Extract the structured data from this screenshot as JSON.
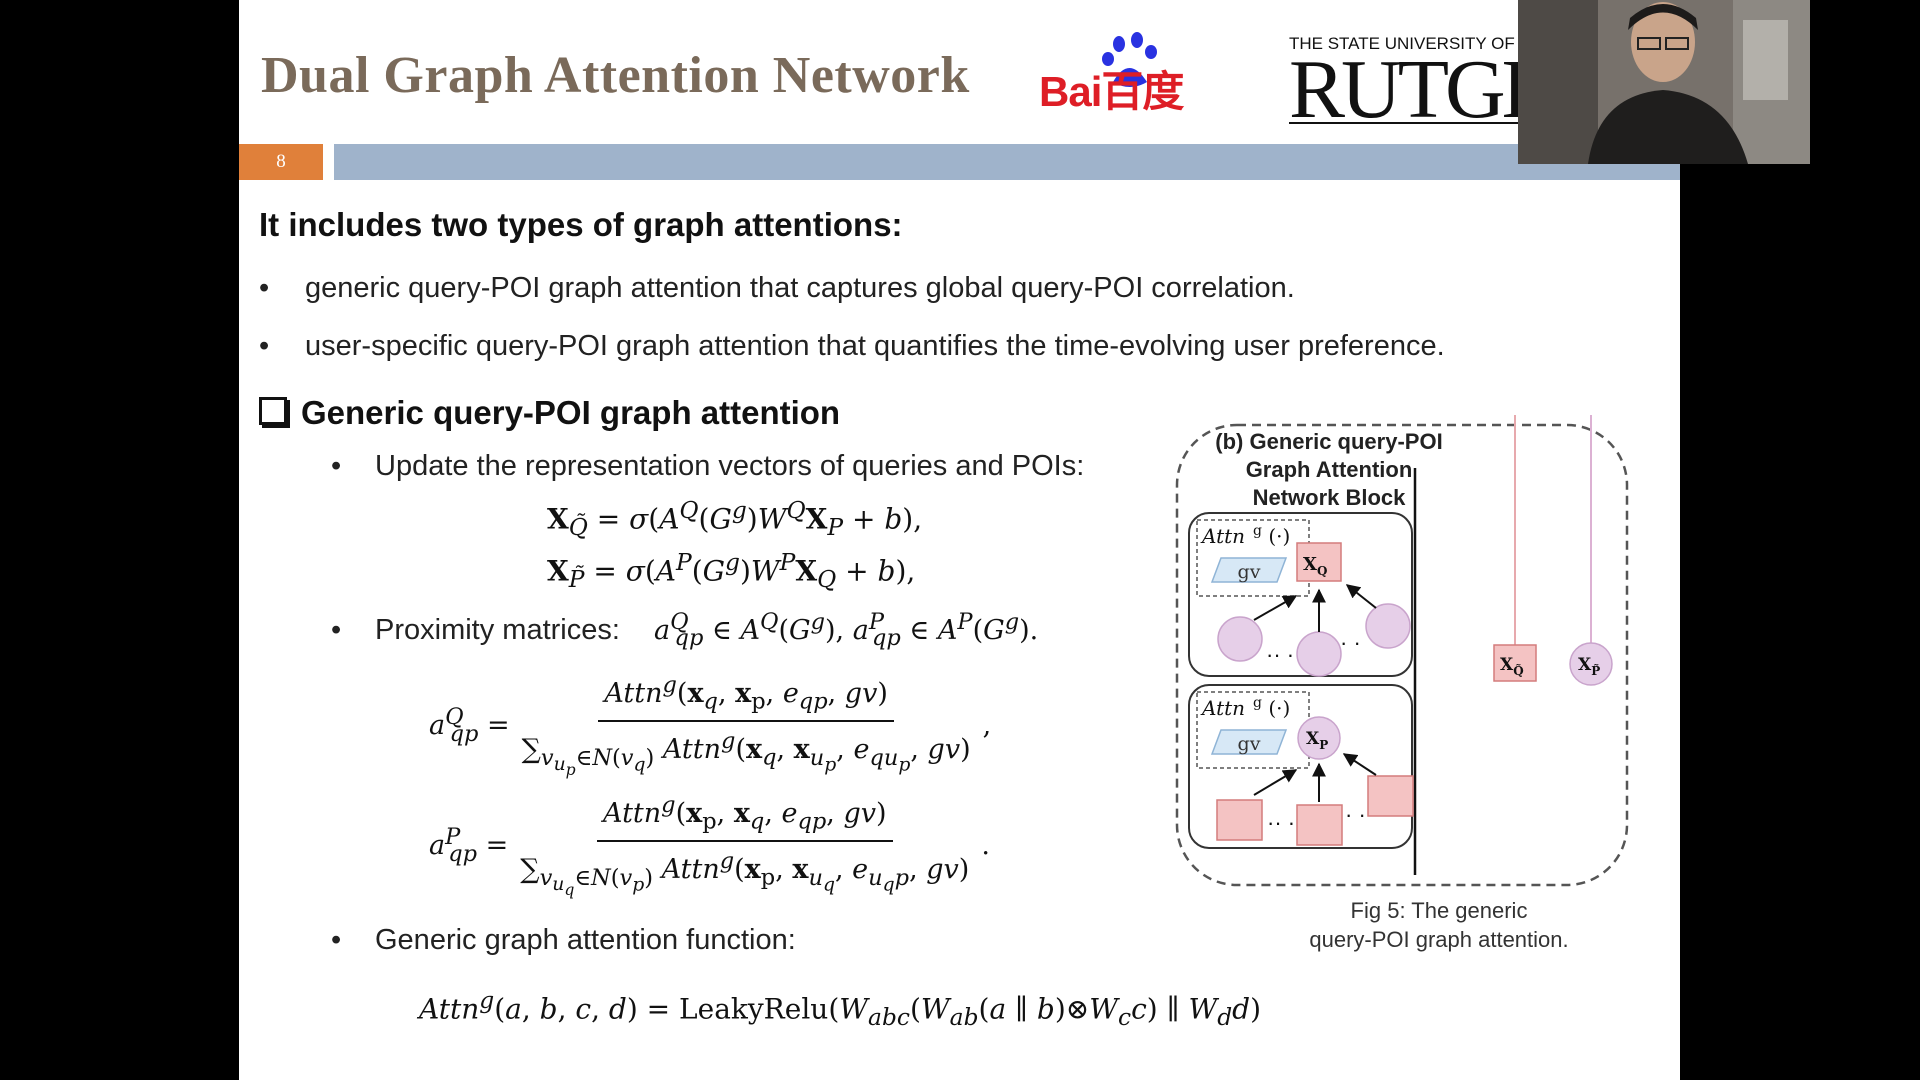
{
  "slide": {
    "title": "Dual Graph Attention Network",
    "number": "8",
    "logos": {
      "baidu_text": "Bai百度",
      "rutgers_top": "THE STATE UNIVERSITY OF",
      "rutgers_name": "RUTGE"
    },
    "intro_heading": "It includes two types of graph attentions:",
    "bullets": [
      "generic query-POI graph attention that captures global query-POI correlation.",
      "user-specific query-POI graph attention that quantifies the time-evolving user preference."
    ],
    "section_heading": "Generic query-POI graph attention",
    "sub_bullets": [
      "Update the representation vectors of queries and POIs:",
      "Proximity matrices:",
      "Generic graph attention function:"
    ],
    "figure": {
      "title_lines": [
        "(b) Generic query-POI",
        "Graph Attention",
        "Network Block"
      ],
      "attn_label": "Attn",
      "gv_label": "gv",
      "caption_lines": [
        "Fig 5: The generic",
        "query-POI graph attention."
      ]
    }
  },
  "colors": {
    "slide_number_bg": "#e0803a",
    "header_bar": "#9fb3cb",
    "title_color": "#7a6a5a",
    "baidu_red": "#de1e26",
    "baidu_blue": "#2932e1",
    "query_node_fill": "#f4c3c3",
    "poi_node_fill": "#e6cfe8",
    "gv_fill": "#d7e8f6"
  },
  "icons": [
    "checkbox-icon",
    "baidu-paw-icon",
    "webcam-person"
  ]
}
